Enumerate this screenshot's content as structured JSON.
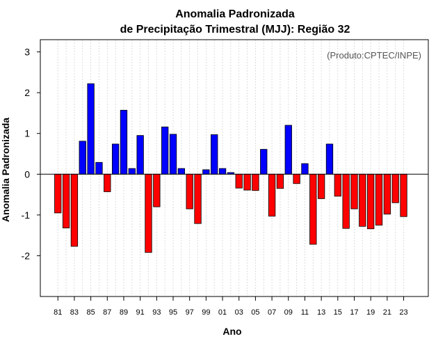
{
  "chart_data": {
    "type": "bar",
    "title": [
      "Anomalia Padronizada",
      "de Precipitação Trimestral (MJJ): Região 32"
    ],
    "credit": "(Produto:CPTEC/INPE)",
    "xlabel": "Ano",
    "ylabel": "Anomalia Padronizada",
    "ylim": [
      -3,
      3.3
    ],
    "yticks": [
      -2,
      -1,
      0,
      1,
      2,
      3
    ],
    "ytick_labels": [
      "-2",
      "-1",
      "0",
      "1",
      "2",
      "3"
    ],
    "categories": [
      "81",
      "82",
      "83",
      "84",
      "85",
      "86",
      "87",
      "88",
      "89",
      "90",
      "91",
      "92",
      "93",
      "94",
      "95",
      "96",
      "97",
      "98",
      "99",
      "00",
      "01",
      "02",
      "03",
      "04",
      "05",
      "06",
      "07",
      "08",
      "09",
      "10",
      "11",
      "12",
      "13",
      "14",
      "15",
      "16",
      "17",
      "18",
      "19",
      "20",
      "21",
      "22",
      "23"
    ],
    "xtick_labels": [
      "81",
      "83",
      "85",
      "87",
      "89",
      "91",
      "93",
      "95",
      "97",
      "99",
      "01",
      "03",
      "05",
      "07",
      "09",
      "11",
      "13",
      "15",
      "17",
      "19",
      "21",
      "23"
    ],
    "values": [
      -0.95,
      -1.32,
      -1.77,
      0.81,
      2.22,
      0.29,
      -0.43,
      0.74,
      1.57,
      0.14,
      0.95,
      -1.92,
      -0.8,
      1.16,
      0.98,
      0.14,
      -0.85,
      -1.21,
      0.11,
      0.97,
      0.14,
      0.04,
      -0.34,
      -0.39,
      -0.4,
      0.61,
      -1.03,
      -0.35,
      1.2,
      -0.23,
      0.26,
      -1.72,
      -0.6,
      0.74,
      -0.54,
      -1.33,
      -0.85,
      -1.28,
      -1.34,
      -1.25,
      -0.98,
      -0.7,
      -1.04
    ],
    "colors": {
      "positive": "#0000ff",
      "negative": "#ff0000",
      "grid": "#d3d3d3"
    },
    "grid": true
  }
}
